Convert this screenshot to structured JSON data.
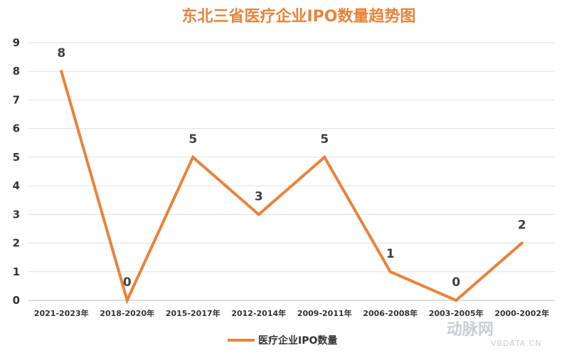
{
  "chart_data": {
    "type": "line",
    "title": "东北三省医疗企业IPO数量趋势图",
    "categories": [
      "2021-2023年",
      "2018-2020年",
      "2015-2017年",
      "2012-2014年",
      "2009-2011年",
      "2006-2008年",
      "2003-2005年",
      "2000-2002年"
    ],
    "series": [
      {
        "name": "医疗企业IPO数量",
        "values": [
          8,
          0,
          5,
          3,
          5,
          1,
          0,
          2
        ],
        "color": "#E8833A"
      }
    ],
    "yticks": [
      "0",
      "1",
      "2",
      "3",
      "4",
      "5",
      "6",
      "7",
      "8",
      "9"
    ],
    "ylim": [
      0,
      9
    ],
    "xlabel": "",
    "ylabel": "",
    "grid": true,
    "legend": "bottom-center"
  },
  "watermark": {
    "brand": "动脉网",
    "site": "VBDATA.CN"
  }
}
